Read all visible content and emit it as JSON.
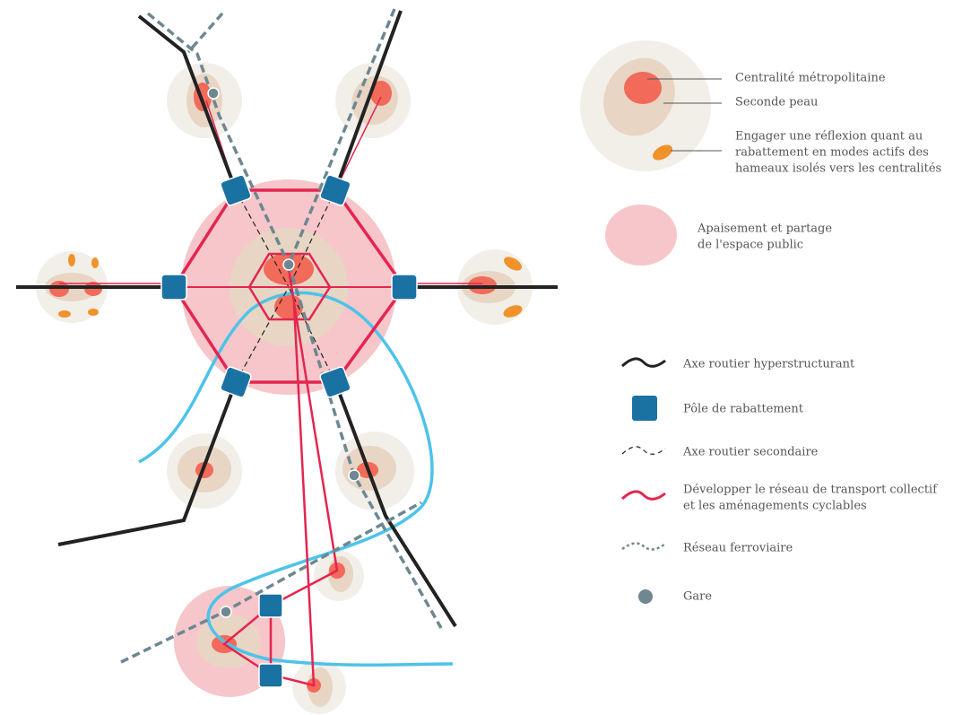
{
  "legend_top": [
    {
      "label": [
        "Centralité métropolitaine"
      ]
    },
    {
      "label": [
        "Seconde peau"
      ]
    },
    {
      "label": [
        "Engager une réflexion quant au",
        "rabattement en modes actifs des",
        "hameaux isolés vers les centralités"
      ]
    },
    {
      "label": [
        "Apaisement et partage",
        "de l'espace public"
      ]
    }
  ],
  "legend": [
    {
      "label": [
        "Axe routier hyperstructurant"
      ]
    },
    {
      "label": [
        "Pôle de rabattement"
      ]
    },
    {
      "label": [
        "Axe routier secondaire"
      ]
    },
    {
      "label": [
        "Développer le réseau de transport collectif",
        "et les aménagements cyclables"
      ]
    },
    {
      "label": [
        "Réseau ferroviaire"
      ]
    },
    {
      "label": [
        "Gare"
      ]
    }
  ]
}
